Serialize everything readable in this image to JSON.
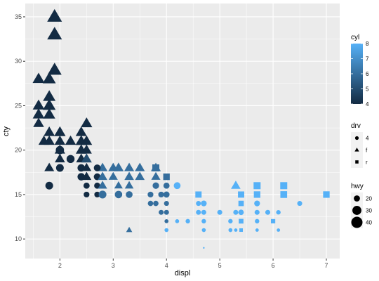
{
  "chart_data": {
    "type": "scatter",
    "xlabel": "displ",
    "ylabel": "cty",
    "xlim": [
      1.35,
      7.25
    ],
    "ylim": [
      7.8,
      36.5
    ],
    "x_ticks": [
      2,
      3,
      4,
      5,
      6,
      7
    ],
    "y_ticks": [
      10,
      15,
      20,
      25,
      30,
      35
    ],
    "grid": true,
    "legend_position": "right",
    "colors": {
      "panel": "#ebebeb",
      "grid": "#ffffff",
      "low": "#132B43",
      "high": "#56B1F7"
    },
    "legends": {
      "cyl": {
        "title": "cyl",
        "range": [
          4,
          8
        ],
        "ticks": [
          4,
          5,
          6,
          7,
          8
        ]
      },
      "drv": {
        "title": "drv",
        "levels": [
          "4",
          "f",
          "r"
        ],
        "shapes": [
          "circle",
          "triangle",
          "square"
        ]
      },
      "hwy": {
        "title": "hwy",
        "breaks": [
          20,
          30,
          40
        ],
        "range": [
          12,
          44
        ]
      }
    },
    "points": [
      {
        "x": 1.9,
        "y": 35,
        "drv": "f",
        "cyl": 4,
        "hwy": 44
      },
      {
        "x": 1.9,
        "y": 33,
        "drv": "f",
        "cyl": 4,
        "hwy": 44
      },
      {
        "x": 1.9,
        "y": 29,
        "drv": "f",
        "cyl": 4,
        "hwy": 41
      },
      {
        "x": 1.6,
        "y": 28,
        "drv": "f",
        "cyl": 4,
        "hwy": 33
      },
      {
        "x": 1.8,
        "y": 28,
        "drv": "f",
        "cyl": 4,
        "hwy": 37
      },
      {
        "x": 1.8,
        "y": 26,
        "drv": "f",
        "cyl": 4,
        "hwy": 35
      },
      {
        "x": 1.8,
        "y": 25,
        "drv": "f",
        "cyl": 4,
        "hwy": 36
      },
      {
        "x": 1.6,
        "y": 25,
        "drv": "f",
        "cyl": 4,
        "hwy": 32
      },
      {
        "x": 1.8,
        "y": 24,
        "drv": "f",
        "cyl": 4,
        "hwy": 33
      },
      {
        "x": 1.6,
        "y": 24,
        "drv": "f",
        "cyl": 4,
        "hwy": 32
      },
      {
        "x": 1.6,
        "y": 23,
        "drv": "f",
        "cyl": 4,
        "hwy": 29
      },
      {
        "x": 2.5,
        "y": 23,
        "drv": "f",
        "cyl": 4,
        "hwy": 31
      },
      {
        "x": 1.8,
        "y": 22,
        "drv": "f",
        "cyl": 4,
        "hwy": 30
      },
      {
        "x": 2.0,
        "y": 22,
        "drv": "f",
        "cyl": 4,
        "hwy": 31
      },
      {
        "x": 2.4,
        "y": 22,
        "drv": "f",
        "cyl": 4,
        "hwy": 30
      },
      {
        "x": 1.7,
        "y": 21,
        "drv": "f",
        "cyl": 4,
        "hwy": 29
      },
      {
        "x": 1.8,
        "y": 21,
        "drv": "f",
        "cyl": 4,
        "hwy": 29
      },
      {
        "x": 2.0,
        "y": 21,
        "drv": "f",
        "cyl": 4,
        "hwy": 29
      },
      {
        "x": 2.2,
        "y": 21,
        "drv": "f",
        "cyl": 4,
        "hwy": 29
      },
      {
        "x": 2.4,
        "y": 21,
        "drv": "f",
        "cyl": 4,
        "hwy": 31
      },
      {
        "x": 2.5,
        "y": 21,
        "drv": "f",
        "cyl": 4,
        "hwy": 30
      },
      {
        "x": 2.0,
        "y": 20,
        "drv": "f",
        "cyl": 4,
        "hwy": 28
      },
      {
        "x": 2.0,
        "y": 20,
        "drv": "4",
        "cyl": 4,
        "hwy": 27
      },
      {
        "x": 2.4,
        "y": 20,
        "drv": "f",
        "cyl": 4,
        "hwy": 29
      },
      {
        "x": 2.5,
        "y": 20,
        "drv": "f",
        "cyl": 4,
        "hwy": 28
      },
      {
        "x": 2.0,
        "y": 19,
        "drv": "f",
        "cyl": 4,
        "hwy": 27
      },
      {
        "x": 2.2,
        "y": 19,
        "drv": "4",
        "cyl": 4,
        "hwy": 26
      },
      {
        "x": 2.4,
        "y": 19,
        "drv": "f",
        "cyl": 4,
        "hwy": 27
      },
      {
        "x": 2.5,
        "y": 19,
        "drv": "f",
        "cyl": 4,
        "hwy": 26
      },
      {
        "x": 2.5,
        "y": 19,
        "drv": "f",
        "cyl": 5,
        "hwy": 28
      },
      {
        "x": 1.8,
        "y": 18,
        "drv": "f",
        "cyl": 4,
        "hwy": 26
      },
      {
        "x": 2.0,
        "y": 18,
        "drv": "4",
        "cyl": 4,
        "hwy": 25
      },
      {
        "x": 2.4,
        "y": 18,
        "drv": "4",
        "cyl": 4,
        "hwy": 24
      },
      {
        "x": 2.5,
        "y": 18,
        "drv": "f",
        "cyl": 4,
        "hwy": 25
      },
      {
        "x": 2.8,
        "y": 18,
        "drv": "f",
        "cyl": 6,
        "hwy": 26
      },
      {
        "x": 3.0,
        "y": 18,
        "drv": "f",
        "cyl": 6,
        "hwy": 26
      },
      {
        "x": 3.1,
        "y": 18,
        "drv": "f",
        "cyl": 6,
        "hwy": 27
      },
      {
        "x": 3.3,
        "y": 18,
        "drv": "f",
        "cyl": 6,
        "hwy": 26
      },
      {
        "x": 3.5,
        "y": 18,
        "drv": "f",
        "cyl": 6,
        "hwy": 26
      },
      {
        "x": 3.8,
        "y": 18,
        "drv": "f",
        "cyl": 6,
        "hwy": 26
      },
      {
        "x": 3.8,
        "y": 18,
        "drv": "r",
        "cyl": 6,
        "hwy": 26
      },
      {
        "x": 2.7,
        "y": 18,
        "drv": "4",
        "cyl": 4,
        "hwy": 22
      },
      {
        "x": 2.4,
        "y": 17,
        "drv": "4",
        "cyl": 4,
        "hwy": 24
      },
      {
        "x": 2.5,
        "y": 17,
        "drv": "f",
        "cyl": 4,
        "hwy": 25
      },
      {
        "x": 2.7,
        "y": 17,
        "drv": "4",
        "cyl": 4,
        "hwy": 22
      },
      {
        "x": 2.8,
        "y": 17,
        "drv": "f",
        "cyl": 6,
        "hwy": 25
      },
      {
        "x": 3.0,
        "y": 17,
        "drv": "f",
        "cyl": 6,
        "hwy": 24
      },
      {
        "x": 3.3,
        "y": 17,
        "drv": "f",
        "cyl": 6,
        "hwy": 25
      },
      {
        "x": 3.5,
        "y": 17,
        "drv": "f",
        "cyl": 6,
        "hwy": 25
      },
      {
        "x": 3.8,
        "y": 17,
        "drv": "f",
        "cyl": 6,
        "hwy": 24
      },
      {
        "x": 4.0,
        "y": 17,
        "drv": "r",
        "cyl": 6,
        "hwy": 24
      },
      {
        "x": 1.8,
        "y": 16,
        "drv": "4",
        "cyl": 4,
        "hwy": 25
      },
      {
        "x": 2.5,
        "y": 16,
        "drv": "4",
        "cyl": 4,
        "hwy": 20
      },
      {
        "x": 2.7,
        "y": 16,
        "drv": "4",
        "cyl": 4,
        "hwy": 20
      },
      {
        "x": 2.8,
        "y": 16,
        "drv": "f",
        "cyl": 6,
        "hwy": 24
      },
      {
        "x": 3.1,
        "y": 16,
        "drv": "f",
        "cyl": 6,
        "hwy": 22
      },
      {
        "x": 3.3,
        "y": 16,
        "drv": "f",
        "cyl": 6,
        "hwy": 23
      },
      {
        "x": 3.8,
        "y": 16,
        "drv": "4",
        "cyl": 6,
        "hwy": 21
      },
      {
        "x": 4.0,
        "y": 16,
        "drv": "4",
        "cyl": 6,
        "hwy": 20
      },
      {
        "x": 4.2,
        "y": 16,
        "drv": "4",
        "cyl": 8,
        "hwy": 22
      },
      {
        "x": 5.3,
        "y": 16,
        "drv": "f",
        "cyl": 8,
        "hwy": 25
      },
      {
        "x": 5.7,
        "y": 16,
        "drv": "r",
        "cyl": 8,
        "hwy": 26
      },
      {
        "x": 6.2,
        "y": 16,
        "drv": "r",
        "cyl": 8,
        "hwy": 26
      },
      {
        "x": 2.5,
        "y": 15,
        "drv": "4",
        "cyl": 4,
        "hwy": 19
      },
      {
        "x": 2.7,
        "y": 15,
        "drv": "4",
        "cyl": 4,
        "hwy": 19
      },
      {
        "x": 2.8,
        "y": 15,
        "drv": "4",
        "cyl": 6,
        "hwy": 25
      },
      {
        "x": 3.1,
        "y": 15,
        "drv": "4",
        "cyl": 6,
        "hwy": 24
      },
      {
        "x": 3.3,
        "y": 15,
        "drv": "4",
        "cyl": 6,
        "hwy": 22
      },
      {
        "x": 3.7,
        "y": 15,
        "drv": "4",
        "cyl": 6,
        "hwy": 19
      },
      {
        "x": 4.0,
        "y": 15,
        "drv": "4",
        "cyl": 6,
        "hwy": 20
      },
      {
        "x": 3.9,
        "y": 15,
        "drv": "4",
        "cyl": 6,
        "hwy": 19
      },
      {
        "x": 4.6,
        "y": 15,
        "drv": "r",
        "cyl": 8,
        "hwy": 23
      },
      {
        "x": 5.4,
        "y": 15,
        "drv": "r",
        "cyl": 8,
        "hwy": 23
      },
      {
        "x": 5.7,
        "y": 15,
        "drv": "r",
        "cyl": 8,
        "hwy": 24
      },
      {
        "x": 6.2,
        "y": 15,
        "drv": "r",
        "cyl": 8,
        "hwy": 25
      },
      {
        "x": 7.0,
        "y": 15,
        "drv": "r",
        "cyl": 8,
        "hwy": 24
      },
      {
        "x": 3.7,
        "y": 14,
        "drv": "4",
        "cyl": 6,
        "hwy": 18
      },
      {
        "x": 4.0,
        "y": 14,
        "drv": "4",
        "cyl": 6,
        "hwy": 17
      },
      {
        "x": 3.8,
        "y": 14,
        "drv": "4",
        "cyl": 6,
        "hwy": 18
      },
      {
        "x": 4.7,
        "y": 14,
        "drv": "4",
        "cyl": 8,
        "hwy": 19
      },
      {
        "x": 5.7,
        "y": 14,
        "drv": "4",
        "cyl": 8,
        "hwy": 19
      },
      {
        "x": 6.5,
        "y": 14,
        "drv": "4",
        "cyl": 8,
        "hwy": 17
      },
      {
        "x": 4.6,
        "y": 14,
        "drv": "4",
        "cyl": 8,
        "hwy": 17
      },
      {
        "x": 5.4,
        "y": 14,
        "drv": "r",
        "cyl": 8,
        "hwy": 20
      },
      {
        "x": 4.0,
        "y": 13,
        "drv": "4",
        "cyl": 6,
        "hwy": 17
      },
      {
        "x": 3.9,
        "y": 13,
        "drv": "4",
        "cyl": 6,
        "hwy": 17
      },
      {
        "x": 4.6,
        "y": 13,
        "drv": "4",
        "cyl": 8,
        "hwy": 17
      },
      {
        "x": 4.7,
        "y": 13,
        "drv": "4",
        "cyl": 8,
        "hwy": 17
      },
      {
        "x": 5.0,
        "y": 13,
        "drv": "4",
        "cyl": 8,
        "hwy": 17
      },
      {
        "x": 5.3,
        "y": 13,
        "drv": "4",
        "cyl": 8,
        "hwy": 17
      },
      {
        "x": 5.4,
        "y": 13,
        "drv": "4",
        "cyl": 8,
        "hwy": 18
      },
      {
        "x": 5.7,
        "y": 13,
        "drv": "4",
        "cyl": 8,
        "hwy": 17
      },
      {
        "x": 6.1,
        "y": 13,
        "drv": "4",
        "cyl": 8,
        "hwy": 16
      },
      {
        "x": 5.9,
        "y": 13,
        "drv": "4",
        "cyl": 8,
        "hwy": 17
      },
      {
        "x": 4.0,
        "y": 12,
        "drv": "4",
        "cyl": 6,
        "hwy": 15
      },
      {
        "x": 4.2,
        "y": 12,
        "drv": "4",
        "cyl": 8,
        "hwy": 15
      },
      {
        "x": 4.4,
        "y": 12,
        "drv": "4",
        "cyl": 8,
        "hwy": 16
      },
      {
        "x": 4.7,
        "y": 12,
        "drv": "4",
        "cyl": 8,
        "hwy": 16
      },
      {
        "x": 5.2,
        "y": 12,
        "drv": "4",
        "cyl": 8,
        "hwy": 16
      },
      {
        "x": 5.4,
        "y": 12,
        "drv": "r",
        "cyl": 8,
        "hwy": 18
      },
      {
        "x": 5.7,
        "y": 12,
        "drv": "4",
        "cyl": 8,
        "hwy": 16
      },
      {
        "x": 6.0,
        "y": 12,
        "drv": "r",
        "cyl": 8,
        "hwy": 17
      },
      {
        "x": 3.3,
        "y": 11,
        "drv": "f",
        "cyl": 6,
        "hwy": 17
      },
      {
        "x": 4.0,
        "y": 11,
        "drv": "4",
        "cyl": 8,
        "hwy": 15
      },
      {
        "x": 4.7,
        "y": 11,
        "drv": "4",
        "cyl": 8,
        "hwy": 15
      },
      {
        "x": 5.2,
        "y": 11,
        "drv": "4",
        "cyl": 8,
        "hwy": 15
      },
      {
        "x": 5.3,
        "y": 11,
        "drv": "4",
        "cyl": 8,
        "hwy": 14
      },
      {
        "x": 5.4,
        "y": 11,
        "drv": "r",
        "cyl": 8,
        "hwy": 15
      },
      {
        "x": 5.7,
        "y": 11,
        "drv": "4",
        "cyl": 8,
        "hwy": 14
      },
      {
        "x": 6.1,
        "y": 11,
        "drv": "4",
        "cyl": 8,
        "hwy": 14
      },
      {
        "x": 4.7,
        "y": 9,
        "drv": "4",
        "cyl": 8,
        "hwy": 12
      }
    ]
  }
}
